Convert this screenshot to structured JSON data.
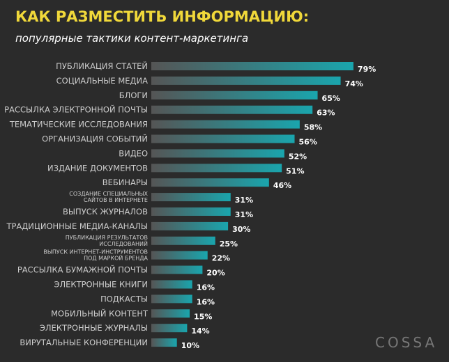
{
  "title": "КАК РАЗМЕСТИТЬ ИНФОРМАЦИЮ:",
  "subtitle": "популярные тактики контент-маркетинга",
  "logo_text": "COSSA",
  "colors": {
    "background": "#2b2b2b",
    "title": "#f0d83a",
    "bar_start": "#555555",
    "bar_end": "#1aa5ad",
    "label": "#cccccc",
    "value": "#ffffff"
  },
  "chart_data": {
    "type": "bar",
    "orientation": "horizontal",
    "unit": "%",
    "xlim": [
      0,
      100
    ],
    "grid": false,
    "categories": [
      [
        "ПУБЛИКАЦИЯ СТАТЕЙ"
      ],
      [
        "СОЦИАЛЬНЫЕ МЕДИА"
      ],
      [
        "БЛОГИ"
      ],
      [
        "РАССЫЛКА ЭЛЕКТРОННОЙ ПОЧТЫ"
      ],
      [
        "ТЕМАТИЧЕСКИЕ ИССЛЕДОВАНИЯ"
      ],
      [
        "ОРГАНИЗАЦИЯ СОБЫТИЙ"
      ],
      [
        "ВИДЕО"
      ],
      [
        "ИЗДАНИЕ ДОКУМЕНТОВ"
      ],
      [
        "ВЕБИНАРЫ"
      ],
      [
        "СОЗДАНИЕ СПЕЦИАЛЬНЫХ",
        "САЙТОВ В ИНТЕРНЕТЕ"
      ],
      [
        "ВЫПУСК ЖУРНАЛОВ"
      ],
      [
        "ТРАДИЦИОННЫЕ МЕДИА-КАНАЛЫ"
      ],
      [
        "ПУБЛИКАЦИЯ РЕЗУЛЬТАТОВ",
        "ИССЛЕДОВАНИЙ"
      ],
      [
        "ВЫПУСК ИНТЕРНЕТ-ИНСТРУМЕНТОВ",
        "ПОД МАРКОЙ БРЕНДА"
      ],
      [
        "РАССЫЛКА БУМАЖНОЙ ПОЧТЫ"
      ],
      [
        "ЭЛЕКТРОННЫЕ КНИГИ"
      ],
      [
        "ПОДКАСТЫ"
      ],
      [
        "МОБИЛЬНЫЙ КОНТЕНТ"
      ],
      [
        "ЭЛЕКТРОННЫЕ ЖУРНАЛЫ"
      ],
      [
        "ВИРУТАЛЬНЫЕ КОНФЕРЕНЦИИ"
      ]
    ],
    "values": [
      79,
      74,
      65,
      63,
      58,
      56,
      52,
      51,
      46,
      31,
      31,
      30,
      25,
      22,
      20,
      16,
      16,
      15,
      14,
      10
    ]
  }
}
